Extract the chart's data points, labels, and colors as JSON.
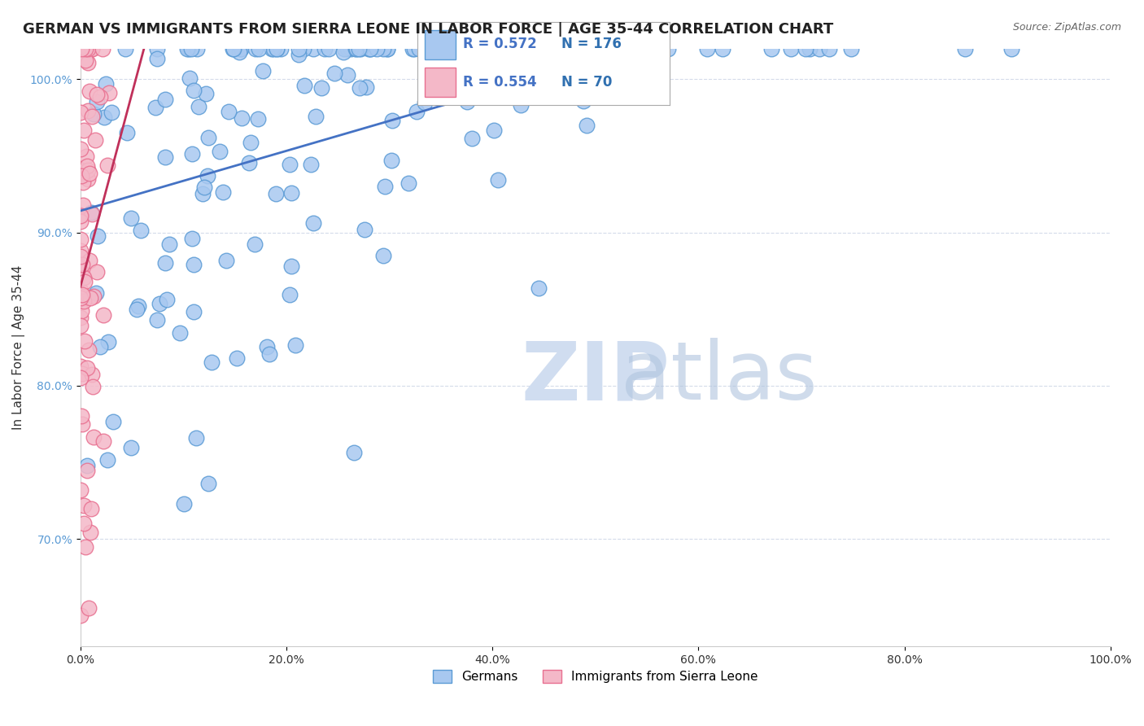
{
  "title": "GERMAN VS IMMIGRANTS FROM SIERRA LEONE IN LABOR FORCE | AGE 35-44 CORRELATION CHART",
  "source_text": "Source: ZipAtlas.com",
  "xlabel": "",
  "ylabel": "In Labor Force | Age 35-44",
  "xlim": [
    0.0,
    1.0
  ],
  "ylim": [
    0.63,
    1.02
  ],
  "xticks": [
    0.0,
    0.2,
    0.4,
    0.6,
    0.8,
    1.0
  ],
  "xticklabels": [
    "0.0%",
    "20.0%",
    "40.0%",
    "60.0%",
    "80.0%",
    "100.0%"
  ],
  "yticks": [
    0.7,
    0.8,
    0.9,
    1.0
  ],
  "yticklabels": [
    "70.0%",
    "80.0%",
    "90.0%",
    "100.0%"
  ],
  "blue_color": "#a8c8f0",
  "blue_edge_color": "#5b9bd5",
  "pink_color": "#f4b8c8",
  "pink_edge_color": "#e87090",
  "trend_blue": "#4472c4",
  "trend_pink": "#c0305a",
  "watermark_color": "#d0ddf0",
  "legend_blue_R": "R = 0.572",
  "legend_blue_N": "N = 176",
  "legend_pink_R": "R = 0.554",
  "legend_pink_N": "N = 70",
  "legend_R_color": "#4472c4",
  "legend_N_color": "#3070b0",
  "background_color": "#ffffff",
  "grid_color": "#d0d8e8",
  "title_fontsize": 13,
  "axis_fontsize": 11,
  "tick_fontsize": 10,
  "seed": 42,
  "n_blue": 176,
  "n_pink": 70,
  "blue_R": 0.572,
  "pink_R": 0.554
}
